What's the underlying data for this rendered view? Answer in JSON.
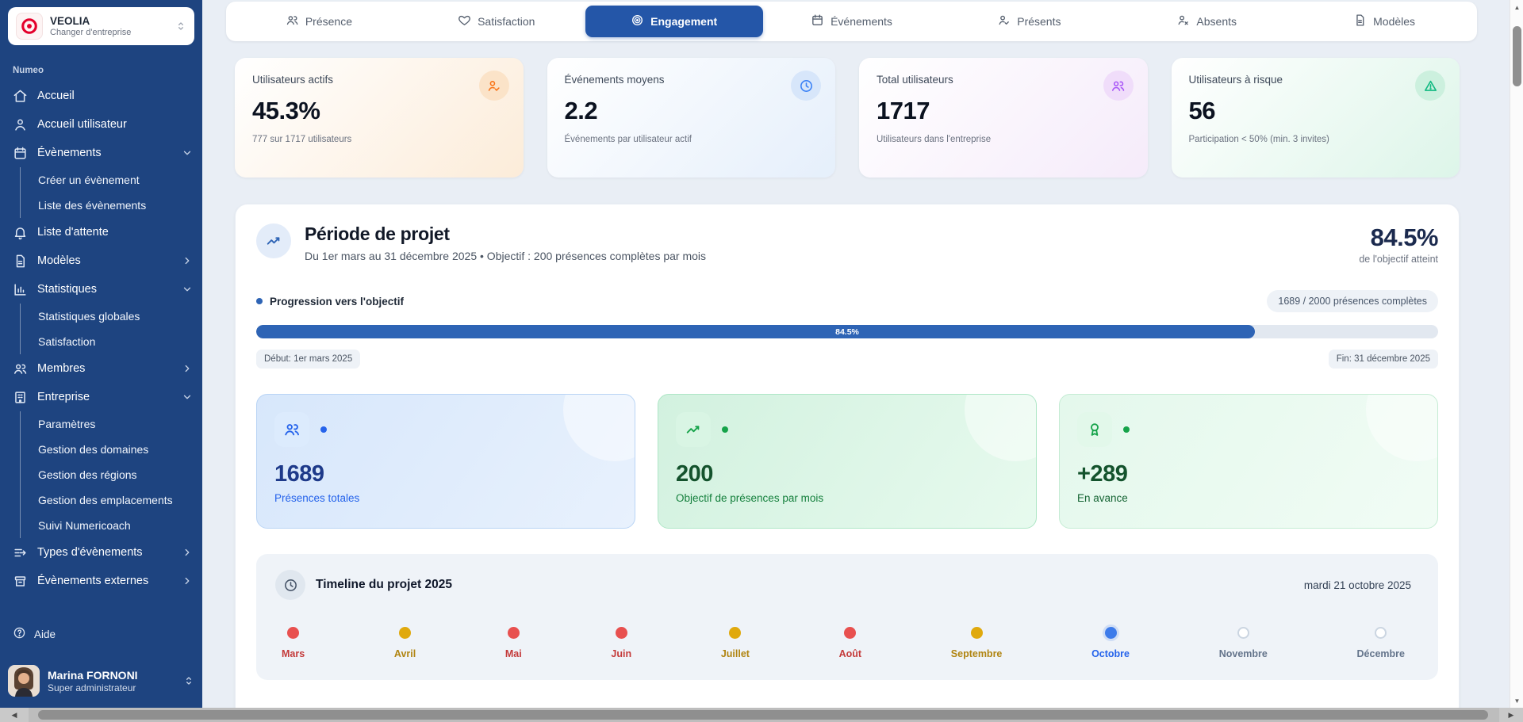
{
  "sidebar": {
    "company": {
      "name": "VEOLIA",
      "subtitle": "Changer d'entreprise"
    },
    "section_label": "Numeo",
    "items": [
      {
        "label": "Accueil",
        "icon": "home"
      },
      {
        "label": "Accueil utilisateur",
        "icon": "user"
      },
      {
        "label": "Évènements",
        "icon": "calendar",
        "expanded": true,
        "children": [
          "Créer un évènement",
          "Liste des évènements"
        ]
      },
      {
        "label": "Liste d'attente",
        "icon": "bell"
      },
      {
        "label": "Modèles",
        "icon": "document"
      },
      {
        "label": "Statistiques",
        "icon": "bar-chart",
        "expanded": true,
        "children": [
          "Statistiques globales",
          "Satisfaction"
        ]
      },
      {
        "label": "Membres",
        "icon": "users"
      },
      {
        "label": "Entreprise",
        "icon": "building",
        "expanded": true,
        "children": [
          "Paramètres",
          "Gestion des domaines",
          "Gestion des régions",
          "Gestion des emplacements",
          "Suivi Numericoach"
        ]
      },
      {
        "label": "Types d'évènements",
        "icon": "list-arrow"
      },
      {
        "label": "Évènements externes",
        "icon": "archive"
      }
    ],
    "help_label": "Aide",
    "user": {
      "name": "Marina FORNONI",
      "role": "Super administrateur"
    }
  },
  "tabs": {
    "items": [
      {
        "label": "Présence",
        "active": false
      },
      {
        "label": "Satisfaction",
        "active": false
      },
      {
        "label": "Engagement",
        "active": true
      },
      {
        "label": "Événements",
        "active": false
      },
      {
        "label": "Présents",
        "active": false
      },
      {
        "label": "Absents",
        "active": false
      },
      {
        "label": "Modèles",
        "active": false
      }
    ]
  },
  "stats": {
    "cards": [
      {
        "title": "Utilisateurs actifs",
        "value": "45.3%",
        "subtitle": "777 sur 1717 utilisateurs",
        "icon": "user-check",
        "theme": "orange"
      },
      {
        "title": "Événements moyens",
        "value": "2.2",
        "subtitle": "Événements par utilisateur actif",
        "icon": "clock",
        "theme": "blue"
      },
      {
        "title": "Total utilisateurs",
        "value": "1717",
        "subtitle": "Utilisateurs dans l'entreprise",
        "icon": "users",
        "theme": "purple"
      },
      {
        "title": "Utilisateurs à risque",
        "value": "56",
        "subtitle": "Participation < 50% (min. 3 invites)",
        "icon": "alert-triangle",
        "theme": "green"
      }
    ]
  },
  "project": {
    "title": "Période de projet",
    "subtitle": "Du 1er mars au 31 décembre 2025 • Objectif : 200 présences complètes par mois",
    "percent": "84.5%",
    "percent_caption": "de l'objectif atteint",
    "progress_label": "Progression vers l'objectif",
    "progress_badge": "1689 / 2000 présences complètes",
    "progress_value": 84.5,
    "bar_label": "84.5%",
    "start_badge": "Début: 1er mars 2025",
    "end_badge": "Fin: 31 décembre 2025",
    "metric_cards": [
      {
        "value": "1689",
        "label": "Présences totales",
        "icon": "users",
        "theme": "blue"
      },
      {
        "value": "200",
        "label": "Objectif de présences par mois",
        "icon": "trend-up",
        "theme": "green"
      },
      {
        "value": "+289",
        "label": "En avance",
        "icon": "award",
        "theme": "green-light"
      }
    ],
    "timeline": {
      "title": "Timeline du projet 2025",
      "date": "mardi 21 octobre 2025",
      "months": [
        {
          "label": "Mars",
          "status": "red"
        },
        {
          "label": "Avril",
          "status": "amber"
        },
        {
          "label": "Mai",
          "status": "red"
        },
        {
          "label": "Juin",
          "status": "red"
        },
        {
          "label": "Juillet",
          "status": "amber"
        },
        {
          "label": "Août",
          "status": "red"
        },
        {
          "label": "Septembre",
          "status": "amber"
        },
        {
          "label": "Octobre",
          "status": "active"
        },
        {
          "label": "Novembre",
          "status": "upcoming"
        },
        {
          "label": "Décembre",
          "status": "upcoming"
        }
      ]
    }
  },
  "colors": {
    "sidebar_navy": "#1e4480",
    "active_tab_blue": "#2456a8",
    "progress_blue": "#2e64b5",
    "timeline_red": "#e8504f",
    "timeline_amber": "#e0a90d",
    "timeline_active_blue": "#3d7bea",
    "stat_orange": "#f97316",
    "stat_blue": "#3b82f6",
    "stat_purple": "#a855f7",
    "stat_green": "#10b981"
  }
}
